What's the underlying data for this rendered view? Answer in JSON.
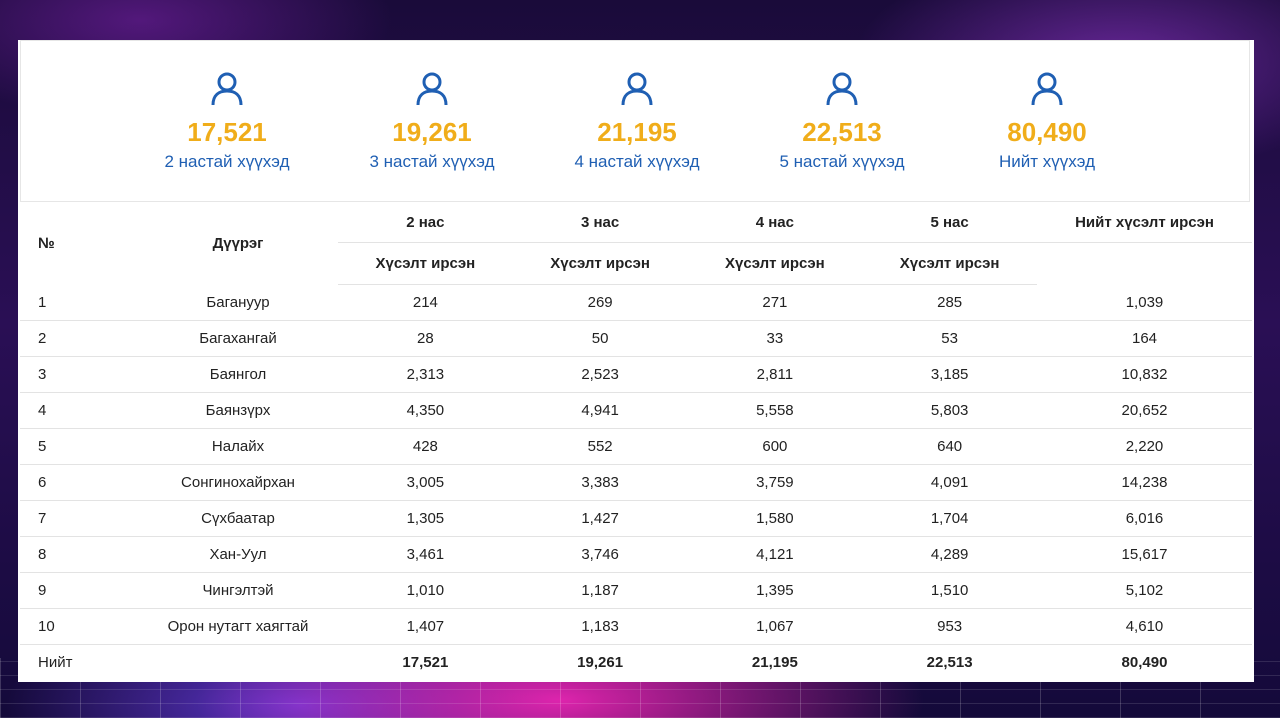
{
  "stats": [
    {
      "icon": "user-icon",
      "value": "17,521",
      "label": "2 настай хүүхэд"
    },
    {
      "icon": "user-icon",
      "value": "19,261",
      "label": "3 настай хүүхэд"
    },
    {
      "icon": "user-icon",
      "value": "21,195",
      "label": "4 настай хүүхэд"
    },
    {
      "icon": "user-icon",
      "value": "22,513",
      "label": "5 настай хүүхэд"
    },
    {
      "icon": "user-icon",
      "value": "80,490",
      "label": "Нийт хүүхэд"
    }
  ],
  "colors": {
    "value": "#f0ad1a",
    "label": "#1f5fb3",
    "icon": "#1f5fb3"
  },
  "table": {
    "headers": {
      "no": "№",
      "district": "Дүүрэг",
      "age2": "2 нас",
      "age3": "3 нас",
      "age4": "4 нас",
      "age5": "5 нас",
      "total": "Нийт хүсэлт ирсэн",
      "sub": "Хүсэлт ирсэн"
    },
    "rows": [
      [
        "1",
        "Багануур",
        "214",
        "269",
        "271",
        "285",
        "1,039"
      ],
      [
        "2",
        "Багахангай",
        "28",
        "50",
        "33",
        "53",
        "164"
      ],
      [
        "3",
        "Баянгол",
        "2,313",
        "2,523",
        "2,811",
        "3,185",
        "10,832"
      ],
      [
        "4",
        "Баянзүрх",
        "4,350",
        "4,941",
        "5,558",
        "5,803",
        "20,652"
      ],
      [
        "5",
        "Налайх",
        "428",
        "552",
        "600",
        "640",
        "2,220"
      ],
      [
        "6",
        "Сонгинохайрхан",
        "3,005",
        "3,383",
        "3,759",
        "4,091",
        "14,238"
      ],
      [
        "7",
        "Сүхбаатар",
        "1,305",
        "1,427",
        "1,580",
        "1,704",
        "6,016"
      ],
      [
        "8",
        "Хан-Уул",
        "3,461",
        "3,746",
        "4,121",
        "4,289",
        "15,617"
      ],
      [
        "9",
        "Чингэлтэй",
        "1,010",
        "1,187",
        "1,395",
        "1,510",
        "5,102"
      ],
      [
        "10",
        "Орон нутагт хаягтай",
        "1,407",
        "1,183",
        "1,067",
        "953",
        "4,610"
      ]
    ],
    "total_row": [
      "Нийт",
      "",
      "17,521",
      "19,261",
      "21,195",
      "22,513",
      "80,490"
    ]
  }
}
